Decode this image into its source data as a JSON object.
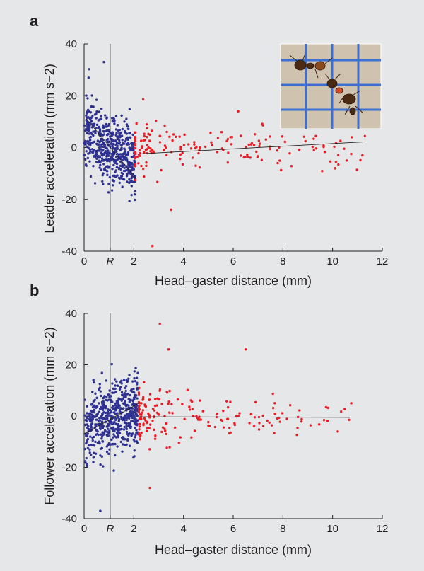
{
  "chart_data": [
    {
      "type": "scatter",
      "panel_label": "a",
      "xlabel": "Head–gaster distance (mm)",
      "ylabel": "Leader acceleration (mm s−2)",
      "xlim": [
        0,
        12
      ],
      "ylim": [
        -40,
        40
      ],
      "xticks": [
        "0",
        "R",
        "2",
        "4",
        "6",
        "8",
        "10",
        "12"
      ],
      "xtick_values": [
        0,
        1.05,
        2,
        4,
        6,
        8,
        10,
        12
      ],
      "yticks": [
        -40,
        -20,
        0,
        20,
        40
      ],
      "R_line_x": 1.05,
      "grid": false,
      "series": [
        {
          "color": "#2e3192",
          "x_range": [
            0,
            2.05
          ],
          "count": 520,
          "trend": [
            [
              0.1,
              11
            ],
            [
              2.1,
              -12
            ]
          ]
        },
        {
          "color": "#ed1c24",
          "x_range": [
            2.05,
            11.3
          ],
          "count": 170,
          "trend": [
            [
              2.1,
              -2.5
            ],
            [
              11.3,
              2.2
            ]
          ]
        }
      ],
      "notable_points": [
        {
          "x": 0.8,
          "y": 33
        },
        {
          "x": 2.75,
          "y": -38
        },
        {
          "x": 3.5,
          "y": -24
        },
        {
          "x": 6.2,
          "y": 14
        },
        {
          "x": 10.1,
          "y": -8
        },
        {
          "x": 11.2,
          "y": -3
        }
      ],
      "inset": "photograph of two ants in tandem running on a grid"
    },
    {
      "type": "scatter",
      "panel_label": "b",
      "xlabel": "Head–gaster distance (mm)",
      "ylabel": "Follower acceleration (mm s−2)",
      "xlim": [
        0,
        12
      ],
      "ylim": [
        -40,
        40
      ],
      "xticks": [
        "0",
        "R",
        "2",
        "4",
        "6",
        "8",
        "10",
        "12"
      ],
      "xtick_values": [
        0,
        1.05,
        2,
        4,
        6,
        8,
        10,
        12
      ],
      "yticks": [
        -40,
        -20,
        0,
        20,
        40
      ],
      "R_line_x": 1.05,
      "grid": false,
      "series": [
        {
          "color": "#2e3192",
          "x_range": [
            0,
            2.2
          ],
          "count": 560,
          "trend": [
            [
              0,
              -7
            ],
            [
              2.2,
              5
            ]
          ]
        },
        {
          "color": "#ed1c24",
          "x_range": [
            2.2,
            10.7
          ],
          "count": 180,
          "trend": [
            [
              2.2,
              -0.3
            ],
            [
              10.7,
              -0.5
            ]
          ]
        }
      ],
      "notable_points": [
        {
          "x": 3.05,
          "y": 36
        },
        {
          "x": 6.5,
          "y": 26
        },
        {
          "x": 3.4,
          "y": 26
        },
        {
          "x": 0.65,
          "y": -37
        },
        {
          "x": 2.65,
          "y": -28
        },
        {
          "x": 10.75,
          "y": 5
        }
      ]
    }
  ]
}
